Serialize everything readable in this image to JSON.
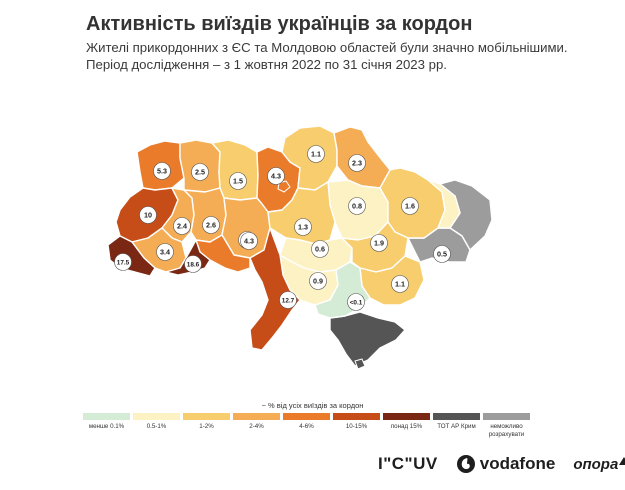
{
  "header": {
    "title": "Активність виїздів українців за кордон",
    "subtitle_line1": "Жителі прикордонних з ЄС та Молдовою областей були значно мобільнішими.",
    "subtitle_line2": "Період дослідження – з 1 жовтня 2022 по 31 січня 2023 рр."
  },
  "colors": {
    "lt01": "#d4ecd5",
    "c05_1": "#fdf2c4",
    "c1_2": "#f7cd6e",
    "c2_4": "#f4ad55",
    "c4_6": "#ea7b2b",
    "c10_15": "#c64d17",
    "c15plus": "#7a2714",
    "occupied": "#555555",
    "na": "#9c9c9c"
  },
  "regions": [
    {
      "label": "5.3",
      "category": "4-6%"
    },
    {
      "label": "2.5",
      "category": "2-4%"
    },
    {
      "label": "1.5",
      "category": "1-2%"
    },
    {
      "label": "4.3",
      "category": "4-6%"
    },
    {
      "label": "1.1",
      "category": "1-2%"
    },
    {
      "label": "2.3",
      "category": "2-4%"
    },
    {
      "label": "10",
      "category": "10-15%"
    },
    {
      "label": "2.4",
      "category": "2-4%"
    },
    {
      "label": "2.6",
      "category": "2-4%"
    },
    {
      "label": "2.6",
      "category": "2-4%"
    },
    {
      "label": "0.8",
      "category": "0.5-1%"
    },
    {
      "label": "1.6",
      "category": "1-2%"
    },
    {
      "label": "1.3",
      "category": "1-2%"
    },
    {
      "label": "4.3",
      "category": "4-6%"
    },
    {
      "label": "3.4",
      "category": "2-4%"
    },
    {
      "label": "17.5",
      "category": "понад 15%"
    },
    {
      "label": "18.6",
      "category": "понад 15%"
    },
    {
      "label": "0.6",
      "category": "0.5-1%"
    },
    {
      "label": "1.9",
      "category": "1-2%"
    },
    {
      "label": "0.5",
      "category": "0.5-1%"
    },
    {
      "label": "0.9",
      "category": "0.5-1%"
    },
    {
      "label": "1.1",
      "category": "1-2%"
    },
    {
      "label": "12.7",
      "category": "10-15%"
    },
    {
      "label": "<0.1",
      "category": "менше 0.1%"
    }
  ],
  "legend": {
    "title": "~ % від усіх виїздів за кордон",
    "items": [
      {
        "label": "менше 0.1%",
        "color": "#d4ecd5"
      },
      {
        "label": "0.5-1%",
        "color": "#fdf2c4"
      },
      {
        "label": "1-2%",
        "color": "#f7cd6e"
      },
      {
        "label": "2-4%",
        "color": "#f4ad55"
      },
      {
        "label": "4-6%",
        "color": "#ea7b2b"
      },
      {
        "label": "10-15%",
        "color": "#c64d17"
      },
      {
        "label": "понад 15%",
        "color": "#7a2714"
      },
      {
        "label": "ТОТ АР Крим",
        "color": "#555555"
      },
      {
        "label": "неможливо розрахувати",
        "color": "#9c9c9c"
      }
    ]
  },
  "sponsors": {
    "ircuv": "I\"C\"UV",
    "vodafone": "vodafone",
    "opora": "опора"
  }
}
